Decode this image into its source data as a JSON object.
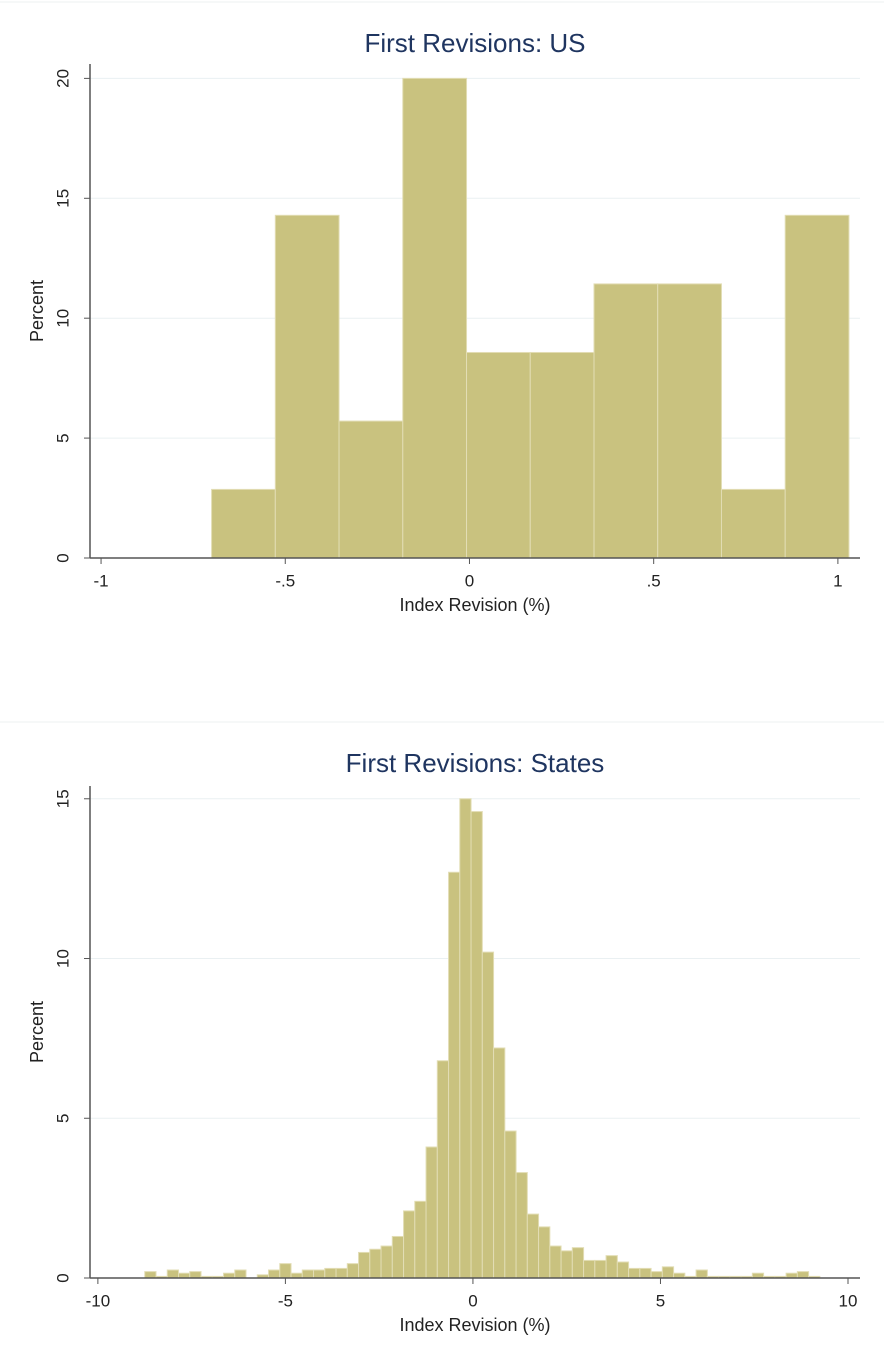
{
  "chart_data": [
    {
      "type": "histogram",
      "title": "First Revisions: US",
      "x_label": "Index Revision (%)",
      "y_label": "Percent",
      "bins": [
        -0.7,
        -0.527,
        -0.354,
        -0.181,
        -0.008,
        0.165,
        0.338,
        0.511,
        0.684,
        0.857,
        1.03
      ],
      "values": [
        2.86,
        14.29,
        5.71,
        20,
        8.57,
        8.57,
        11.43,
        11.43,
        2.86,
        14.29
      ],
      "color": "#c9c27f",
      "xlim": [
        -1.03,
        1.06
      ],
      "ylim": [
        0,
        20.6
      ],
      "xticks": [
        -1,
        {
          "value": -0.5,
          "label": "-.5"
        },
        0,
        {
          "value": 0.5,
          "label": ".5"
        },
        1
      ],
      "yticks": [
        0,
        5,
        10,
        15,
        20
      ],
      "grid": true
    },
    {
      "type": "histogram",
      "title": "First Revisions: States",
      "x_label": "Index Revision (%)",
      "y_label": "Percent",
      "bins": [
        -9.65,
        -9.35,
        -9.05,
        -8.75,
        -8.45,
        -8.15,
        -7.85,
        -7.55,
        -7.25,
        -6.95,
        -6.65,
        -6.35,
        -6.05,
        -5.75,
        -5.45,
        -5.15,
        -4.85,
        -4.55,
        -4.25,
        -3.95,
        -3.65,
        -3.35,
        -3.05,
        -2.75,
        -2.45,
        -2.15,
        -1.85,
        -1.55,
        -1.25,
        -0.95,
        -0.65,
        -0.35,
        -0.05,
        0.25,
        0.55,
        0.85,
        1.15,
        1.45,
        1.75,
        2.05,
        2.35,
        2.65,
        2.95,
        3.25,
        3.55,
        3.85,
        4.15,
        4.45,
        4.75,
        5.05,
        5.35,
        5.65,
        5.95,
        6.25,
        6.55,
        6.85,
        7.15,
        7.45,
        7.75,
        8.05,
        8.35,
        8.65,
        8.95,
        9.25
      ],
      "values": [
        0,
        0,
        0,
        0.2,
        0.05,
        0.25,
        0.15,
        0.2,
        0.05,
        0.05,
        0.15,
        0.25,
        0,
        0.1,
        0.25,
        0.45,
        0.15,
        0.25,
        0.25,
        0.3,
        0.3,
        0.45,
        0.8,
        0.9,
        1.0,
        1.3,
        2.1,
        2.4,
        4.1,
        6.8,
        12.7,
        15.0,
        14.6,
        10.2,
        7.2,
        4.6,
        3.3,
        2.0,
        1.6,
        1.0,
        0.85,
        0.95,
        0.55,
        0.55,
        0.7,
        0.5,
        0.3,
        0.3,
        0.2,
        0.35,
        0.15,
        0.05,
        0.25,
        0.05,
        0.05,
        0.05,
        0.05,
        0.15,
        0.05,
        0.05,
        0.15,
        0.2,
        0.05
      ],
      "color": "#c9c27f",
      "xlim": [
        -10.21,
        10.32
      ],
      "ylim": [
        0,
        15.4
      ],
      "xticks": [
        -10,
        -5,
        0,
        5,
        10
      ],
      "yticks": [
        0,
        5,
        10,
        15
      ],
      "grid": true
    }
  ]
}
